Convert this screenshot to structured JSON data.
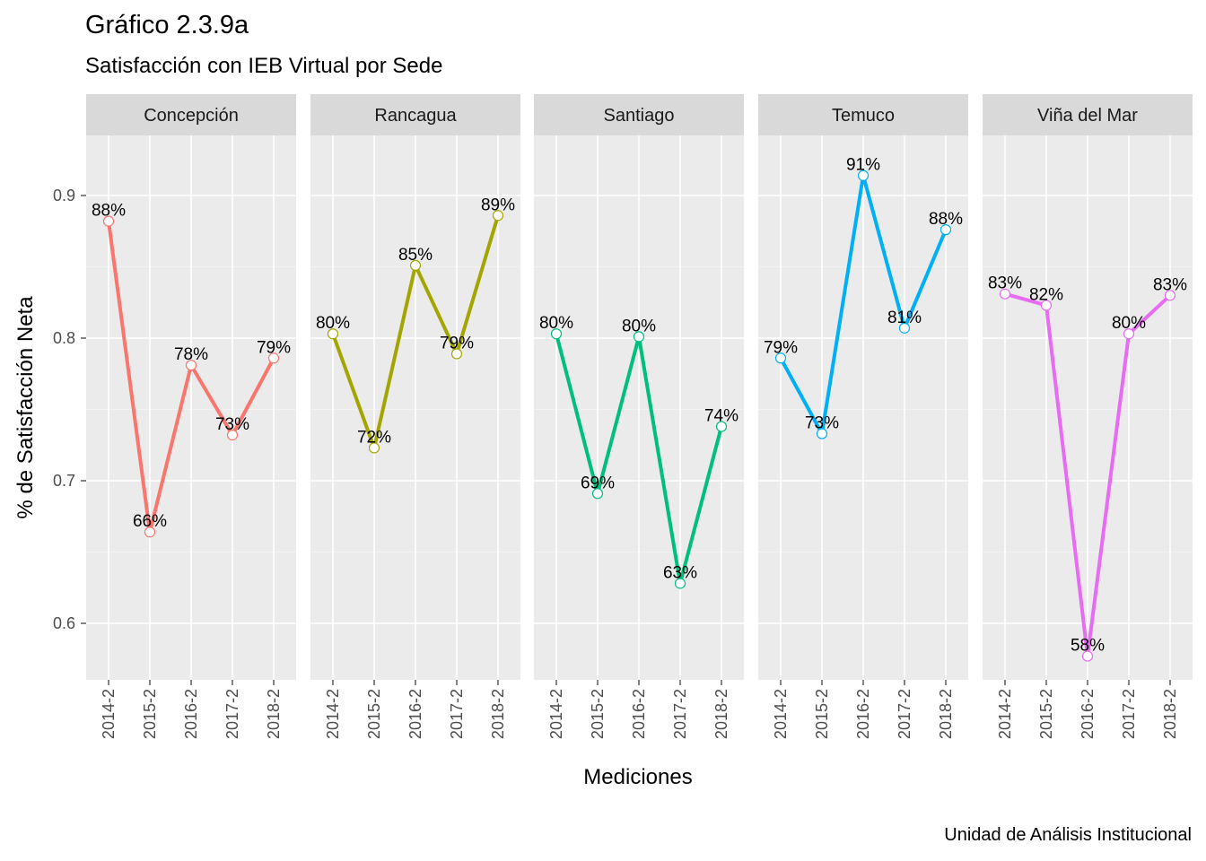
{
  "title": "Gráfico 2.3.9a",
  "subtitle": "Satisfacción con IEB Virtual por Sede",
  "caption": "Unidad de Análisis Institucional",
  "chart_data": {
    "type": "line",
    "xlabel": "Mediciones",
    "ylabel": "% de Satisfacción Neta",
    "ylim": [
      0.56,
      0.95
    ],
    "yticks": [
      0.6,
      0.7,
      0.8,
      0.9
    ],
    "ytick_labels": [
      "0.6",
      "0.7",
      "0.8",
      "0.9"
    ],
    "categories": [
      "2014-2",
      "2015-2",
      "2016-2",
      "2017-2",
      "2018-2"
    ],
    "grid": true,
    "legend": "none",
    "panels": [
      {
        "name": "Concepción",
        "color": "#F8766D",
        "values": [
          0.882,
          0.664,
          0.781,
          0.732,
          0.786
        ],
        "labels": [
          "88%",
          "66%",
          "78%",
          "73%",
          "79%"
        ]
      },
      {
        "name": "Rancagua",
        "color": "#A3A500",
        "values": [
          0.803,
          0.723,
          0.851,
          0.789,
          0.886
        ],
        "labels": [
          "80%",
          "72%",
          "85%",
          "79%",
          "89%"
        ]
      },
      {
        "name": "Santiago",
        "color": "#00BF7D",
        "values": [
          0.803,
          0.691,
          0.801,
          0.628,
          0.738
        ],
        "labels": [
          "80%",
          "69%",
          "80%",
          "63%",
          "74%"
        ]
      },
      {
        "name": "Temuco",
        "color": "#00B0F6",
        "values": [
          0.786,
          0.733,
          0.914,
          0.807,
          0.876
        ],
        "labels": [
          "79%",
          "73%",
          "91%",
          "81%",
          "88%"
        ]
      },
      {
        "name": "Viña del Mar",
        "color": "#E76BF3",
        "values": [
          0.831,
          0.823,
          0.577,
          0.803,
          0.83
        ],
        "labels": [
          "83%",
          "82%",
          "58%",
          "80%",
          "83%"
        ]
      }
    ]
  }
}
